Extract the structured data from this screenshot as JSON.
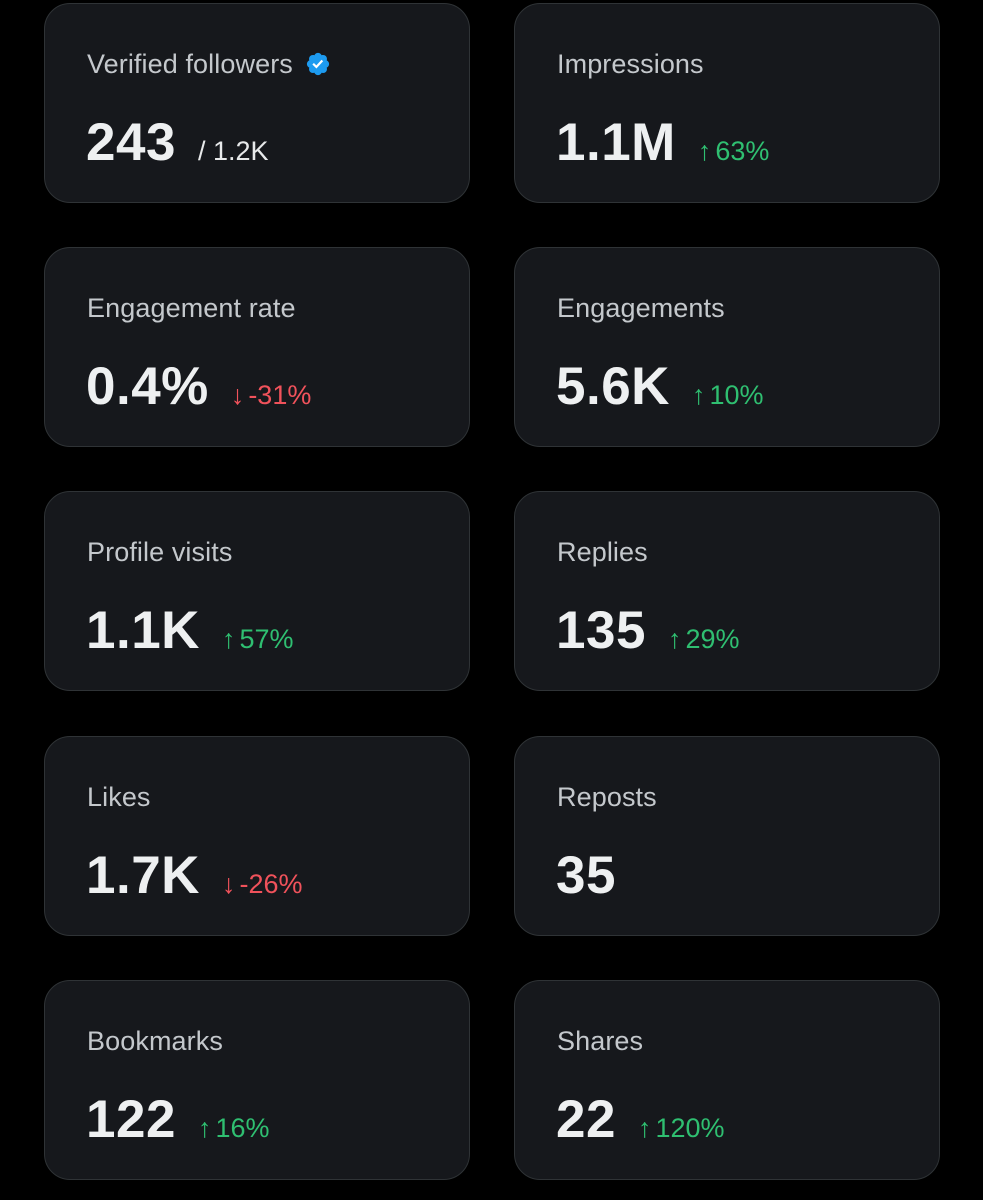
{
  "colors": {
    "background": "#000000",
    "card": "#16181c",
    "card_border": "#2f3336",
    "positive": "#2fbf71",
    "negative": "#f0525b",
    "verified": "#1d9bf0"
  },
  "cards": {
    "verified_followers": {
      "label": "Verified followers",
      "value": "243",
      "suffix": "/ 1.2K",
      "icon": "verified-badge-icon"
    },
    "impressions": {
      "label": "Impressions",
      "value": "1.1M",
      "delta": "63%",
      "direction": "up",
      "arrow": "↑"
    },
    "engagement_rate": {
      "label": "Engagement rate",
      "value": "0.4%",
      "delta": "-31%",
      "direction": "down",
      "arrow": "↓"
    },
    "engagements": {
      "label": "Engagements",
      "value": "5.6K",
      "delta": "10%",
      "direction": "up",
      "arrow": "↑"
    },
    "profile_visits": {
      "label": "Profile visits",
      "value": "1.1K",
      "delta": "57%",
      "direction": "up",
      "arrow": "↑"
    },
    "replies": {
      "label": "Replies",
      "value": "135",
      "delta": "29%",
      "direction": "up",
      "arrow": "↑"
    },
    "likes": {
      "label": "Likes",
      "value": "1.7K",
      "delta": "-26%",
      "direction": "down",
      "arrow": "↓"
    },
    "reposts": {
      "label": "Reposts",
      "value": "35"
    },
    "bookmarks": {
      "label": "Bookmarks",
      "value": "122",
      "delta": "16%",
      "direction": "up",
      "arrow": "↑"
    },
    "shares": {
      "label": "Shares",
      "value": "22",
      "delta": "120%",
      "direction": "up",
      "arrow": "↑"
    }
  }
}
